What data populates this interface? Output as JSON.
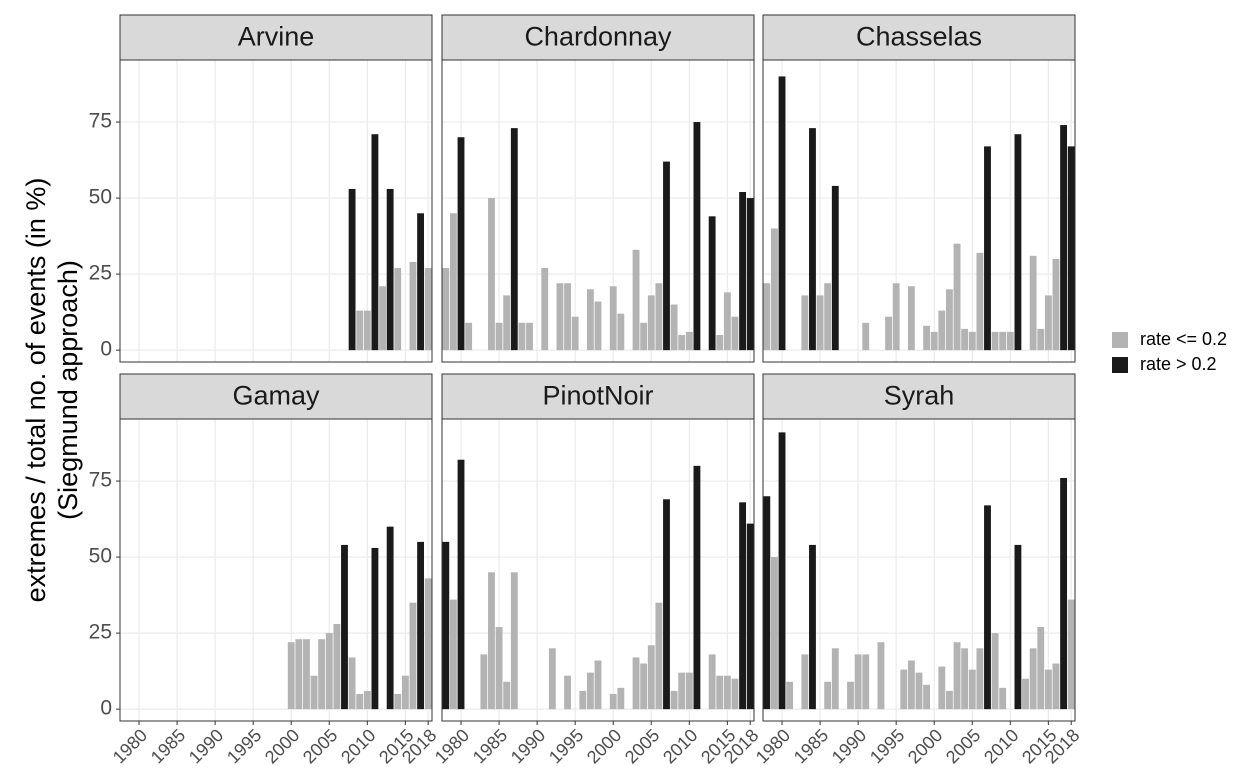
{
  "chart_data": {
    "type": "bar",
    "y_label": [
      "extremes / total no. of events (in %)",
      "(Siegmund approach)"
    ],
    "series": [
      {
        "name": "rate <= 0.2",
        "color": "#b3b3b3"
      },
      {
        "name": "rate > 0.2",
        "color": "#1a1a1a"
      }
    ],
    "xlim": [
      1977.5,
      2018.5
    ],
    "xticks": [
      1980,
      1985,
      1990,
      1995,
      2000,
      2005,
      2010,
      2015,
      2018
    ],
    "ylim": [
      -3.9,
      95.4
    ],
    "yticks": [
      0,
      25,
      50,
      75
    ],
    "grid": true,
    "facets": [
      {
        "title": "Arvine",
        "series": [
          {
            "x": [
              2009,
              2010,
              2012,
              2014,
              2016,
              2018
            ],
            "values": [
              13,
              13,
              21,
              27,
              29,
              27
            ]
          },
          {
            "x": [
              2008,
              2011,
              2013,
              2017
            ],
            "values": [
              53,
              71,
              53,
              45
            ]
          }
        ]
      },
      {
        "title": "Chardonnay",
        "series": [
          {
            "x": [
              1978,
              1979,
              1981,
              1984,
              1985,
              1986,
              1988,
              1989,
              1991,
              1993,
              1994,
              1995,
              1997,
              1998,
              2000,
              2001,
              2003,
              2004,
              2005,
              2006,
              2008,
              2009,
              2010,
              2014,
              2015,
              2016
            ],
            "values": [
              27,
              45,
              9,
              50,
              9,
              18,
              9,
              9,
              27,
              22,
              22,
              11,
              20,
              16,
              21,
              12,
              33,
              9,
              18,
              22,
              15,
              5,
              6,
              5,
              19,
              11
            ]
          },
          {
            "x": [
              1980,
              1987,
              2007,
              2011,
              2013,
              2017,
              2018
            ],
            "values": [
              70,
              73,
              62,
              75,
              44,
              52,
              50
            ]
          }
        ]
      },
      {
        "title": "Chasselas",
        "series": [
          {
            "x": [
              1978,
              1979,
              1983,
              1985,
              1986,
              1991,
              1994,
              1995,
              1997,
              1999,
              2000,
              2001,
              2002,
              2003,
              2004,
              2005,
              2006,
              2008,
              2009,
              2010,
              2013,
              2014,
              2015,
              2016
            ],
            "values": [
              22,
              40,
              18,
              18,
              22,
              9,
              11,
              22,
              21,
              8,
              6,
              13,
              20,
              35,
              7,
              6,
              32,
              6,
              6,
              6,
              31,
              7,
              18,
              30
            ]
          },
          {
            "x": [
              1980,
              1984,
              1987,
              2007,
              2011,
              2017,
              2018
            ],
            "values": [
              90,
              73,
              54,
              67,
              71,
              74,
              67
            ]
          }
        ]
      },
      {
        "title": "Gamay",
        "series": [
          {
            "x": [
              2000,
              2001,
              2002,
              2003,
              2004,
              2005,
              2006,
              2008,
              2009,
              2010,
              2014,
              2015,
              2016,
              2018
            ],
            "values": [
              22,
              23,
              23,
              11,
              23,
              25,
              28,
              17,
              5,
              6,
              5,
              11,
              35,
              43
            ]
          },
          {
            "x": [
              2007,
              2011,
              2013,
              2017
            ],
            "values": [
              54,
              53,
              60,
              55
            ]
          }
        ]
      },
      {
        "title": "PinotNoir",
        "series": [
          {
            "x": [
              1979,
              1983,
              1984,
              1985,
              1986,
              1987,
              1992,
              1994,
              1996,
              1997,
              1998,
              2000,
              2001,
              2003,
              2004,
              2005,
              2006,
              2008,
              2009,
              2010,
              2013,
              2014,
              2015,
              2016
            ],
            "values": [
              36,
              18,
              45,
              27,
              9,
              45,
              20,
              11,
              6,
              12,
              16,
              5,
              7,
              17,
              15,
              21,
              35,
              6,
              12,
              12,
              18,
              11,
              11,
              10
            ]
          },
          {
            "x": [
              1978,
              1980,
              2007,
              2011,
              2017,
              2018
            ],
            "values": [
              55,
              82,
              69,
              80,
              68,
              61
            ]
          }
        ]
      },
      {
        "title": "Syrah",
        "series": [
          {
            "x": [
              1979,
              1981,
              1983,
              1986,
              1987,
              1989,
              1990,
              1991,
              1993,
              1996,
              1997,
              1998,
              1999,
              2001,
              2002,
              2003,
              2004,
              2005,
              2006,
              2008,
              2009,
              2012,
              2013,
              2014,
              2015,
              2016,
              2018
            ],
            "values": [
              50,
              9,
              18,
              9,
              20,
              9,
              18,
              18,
              22,
              13,
              16,
              12,
              8,
              14,
              6,
              22,
              20,
              13,
              20,
              25,
              7,
              10,
              20,
              27,
              13,
              15,
              36
            ]
          },
          {
            "x": [
              1978,
              1980,
              1984,
              2007,
              2011,
              2017
            ],
            "values": [
              70,
              91,
              54,
              67,
              54,
              76
            ]
          }
        ]
      }
    ]
  }
}
